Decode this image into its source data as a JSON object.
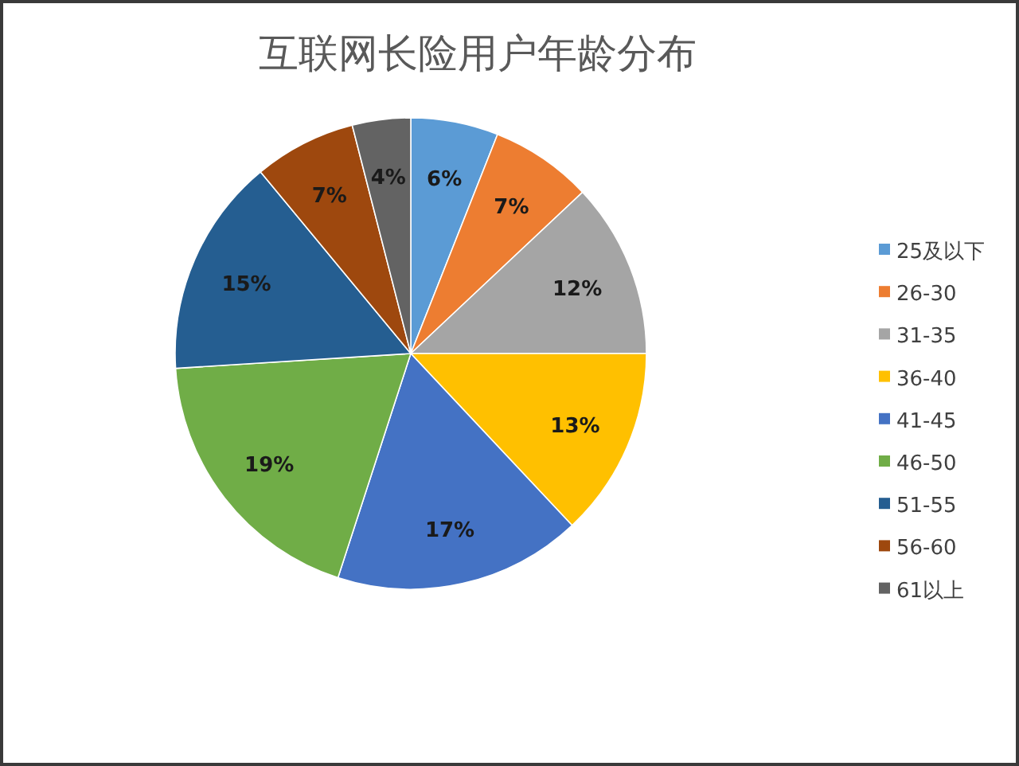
{
  "chart_data": {
    "type": "pie",
    "title": "互联网长险用户年龄分布",
    "categories": [
      "25及以下",
      "26-30",
      "31-35",
      "36-40",
      "41-45",
      "46-50",
      "51-55",
      "56-60",
      "61以上"
    ],
    "values": [
      6,
      7,
      12,
      13,
      17,
      19,
      15,
      7,
      4
    ],
    "value_labels": [
      "6%",
      "7%",
      "12%",
      "13%",
      "17%",
      "19%",
      "15%",
      "7%",
      "4%"
    ],
    "colors": [
      "#5b9bd5",
      "#ed7d31",
      "#a5a5a5",
      "#ffc000",
      "#4472c4",
      "#70ad47",
      "#255e91",
      "#9e480e",
      "#636363"
    ],
    "legend": "right"
  }
}
